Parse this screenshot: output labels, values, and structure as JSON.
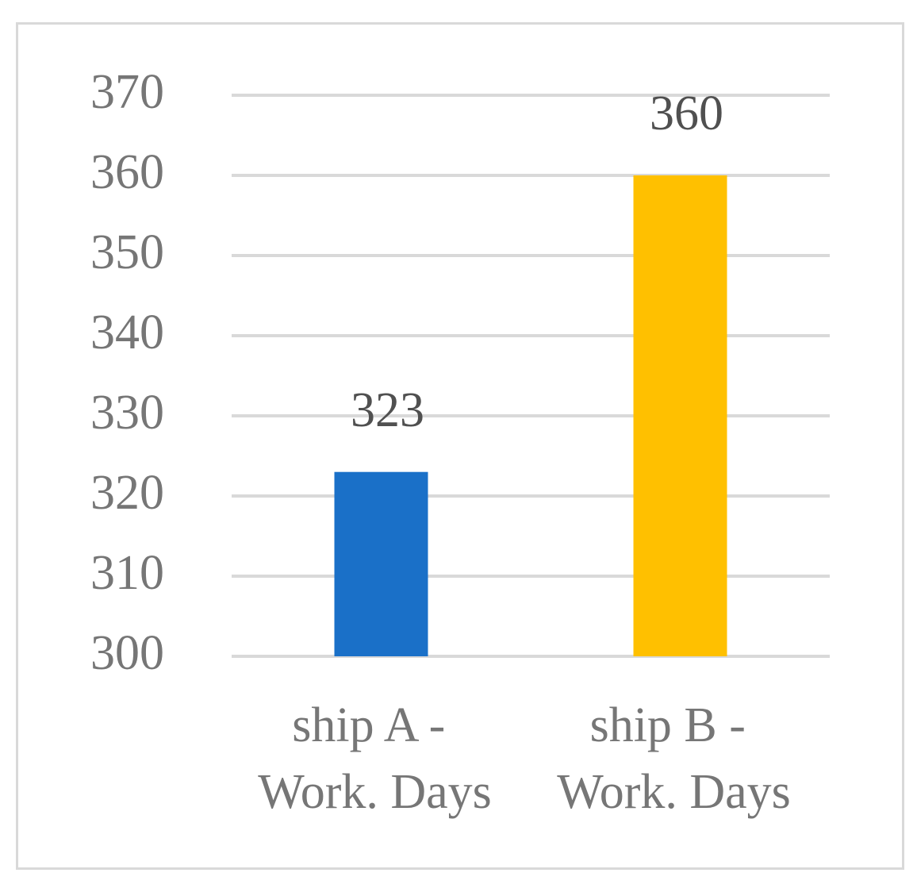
{
  "chart_data": {
    "type": "bar",
    "categories": [
      "ship A - Work. Days",
      "ship B - Work. Days"
    ],
    "values": [
      323,
      360
    ],
    "colors": [
      "#1a70c8",
      "#ffc000"
    ],
    "ylim": [
      300,
      370
    ],
    "yticks": [
      300,
      310,
      320,
      330,
      340,
      350,
      360,
      370
    ],
    "grid": true,
    "data_labels": true
  }
}
